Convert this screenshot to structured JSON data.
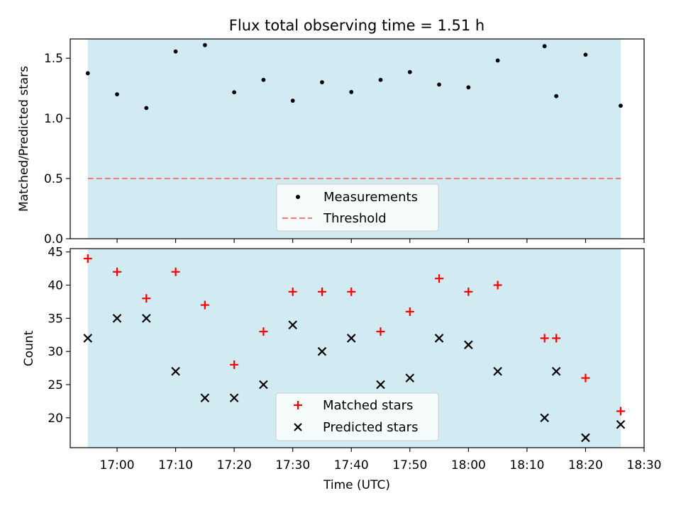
{
  "chart_data": [
    {
      "type": "scatter",
      "title": "Flux total observing time = 1.51 h",
      "xlabel": "",
      "ylabel": "Matched/Predicted stars",
      "ylim": [
        0,
        1.66
      ],
      "yticks": [
        "0.0",
        "0.5",
        "1.0",
        "1.5"
      ],
      "ytick_values": [
        0,
        0.5,
        1.0,
        1.5
      ],
      "xlim": [
        "16:52",
        "18:30"
      ],
      "shaded_span": [
        "16:55",
        "18:26"
      ],
      "shade_color": "#add8e6",
      "threshold": 0.5,
      "legend_position": "lower center",
      "series": [
        {
          "name": "Measurements",
          "marker": "dot",
          "color": "#000000",
          "x": [
            "16:55",
            "17:00",
            "17:05",
            "17:10",
            "17:15",
            "17:20",
            "17:25",
            "17:30",
            "17:35",
            "17:40",
            "17:45",
            "17:50",
            "17:55",
            "18:00",
            "18:05",
            "18:13",
            "18:15",
            "18:20",
            "18:26"
          ],
          "y": [
            1.375,
            1.2,
            1.086,
            1.556,
            1.609,
            1.217,
            1.32,
            1.147,
            1.3,
            1.219,
            1.32,
            1.385,
            1.281,
            1.258,
            1.481,
            1.6,
            1.185,
            1.529,
            1.105
          ]
        },
        {
          "name": "Threshold",
          "marker": "dashed-line",
          "color": "#f08080",
          "y": 0.5
        }
      ]
    },
    {
      "type": "scatter",
      "title": "",
      "xlabel": "Time (UTC)",
      "ylabel": "Count",
      "ylim": [
        15.5,
        45.5
      ],
      "yticks": [
        "20",
        "25",
        "30",
        "35",
        "40",
        "45"
      ],
      "ytick_values": [
        20,
        25,
        30,
        35,
        40,
        45
      ],
      "xlim": [
        "16:52",
        "18:30"
      ],
      "xticks": [
        "17:00",
        "17:10",
        "17:20",
        "17:30",
        "17:40",
        "17:50",
        "18:00",
        "18:10",
        "18:20",
        "18:30"
      ],
      "shaded_span": [
        "16:55",
        "18:26"
      ],
      "shade_color": "#add8e6",
      "legend_position": "lower center",
      "x": [
        "16:55",
        "17:00",
        "17:05",
        "17:10",
        "17:15",
        "17:20",
        "17:25",
        "17:30",
        "17:35",
        "17:40",
        "17:45",
        "17:50",
        "17:55",
        "18:00",
        "18:05",
        "18:13",
        "18:15",
        "18:20",
        "18:26"
      ],
      "series": [
        {
          "name": "Matched stars",
          "marker": "plus",
          "color": "#ff0000",
          "values": [
            44,
            42,
            38,
            42,
            37,
            28,
            33,
            39,
            39,
            39,
            33,
            36,
            41,
            39,
            40,
            32,
            32,
            26,
            21
          ]
        },
        {
          "name": "Predicted stars",
          "marker": "x",
          "color": "#000000",
          "values": [
            32,
            35,
            35,
            27,
            23,
            23,
            25,
            34,
            30,
            32,
            25,
            26,
            32,
            31,
            27,
            20,
            27,
            17,
            19
          ]
        }
      ]
    }
  ]
}
